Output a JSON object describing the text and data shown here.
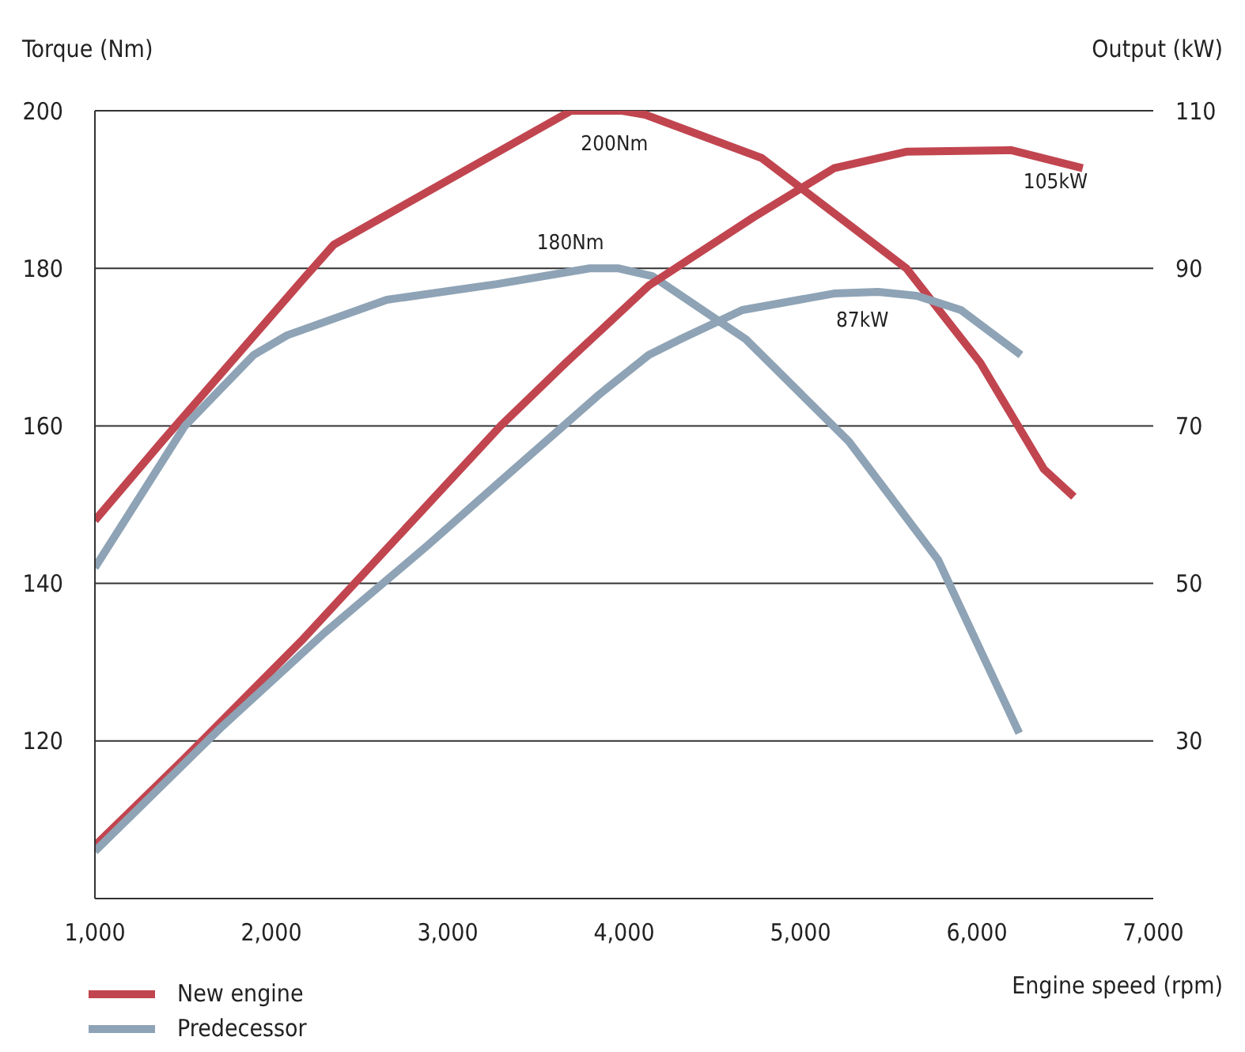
{
  "chart_data": {
    "type": "line",
    "xlabel": "Engine speed (rpm)",
    "ylabel": "Torque (Nm)",
    "y2label": "Output (kW)",
    "xlim": [
      1000,
      7000
    ],
    "xticks": [
      {
        "value": 1000,
        "label": "1,000"
      },
      {
        "value": 2000,
        "label": "2,000"
      },
      {
        "value": 3000,
        "label": "3,000"
      },
      {
        "value": 4000,
        "label": "4,000"
      },
      {
        "value": 5000,
        "label": "5,000"
      },
      {
        "value": 6000,
        "label": "6,000"
      },
      {
        "value": 7000,
        "label": "7,000"
      }
    ],
    "ylim": [
      100,
      200
    ],
    "yticks": [
      120,
      140,
      160,
      180,
      200
    ],
    "y2lim": [
      10,
      110
    ],
    "y2ticks": [
      30,
      50,
      70,
      90,
      110
    ],
    "grid": "y",
    "legend": "bottom left",
    "series": [
      {
        "name": "New engine",
        "color": "#c1454f",
        "x": [
          1000,
          1380,
          2195,
          2354,
          3700,
          3990,
          4120,
          4780,
          5600,
          6020,
          6380,
          6550
        ],
        "values": [
          148,
          158,
          179,
          183,
          200,
          200,
          199.5,
          194,
          180,
          168,
          154.5,
          151
        ],
        "value_labels": [
          null,
          null,
          null,
          null,
          null,
          "200Nm",
          null,
          null,
          null,
          null,
          null,
          null
        ]
      },
      {
        "name": "Predecessor",
        "color": "#8ea3b5",
        "x": [
          1000,
          1510,
          1900,
          2090,
          2655,
          3280,
          3805,
          3965,
          4160,
          4690,
          5275,
          5780,
          6240
        ],
        "values": [
          142,
          160,
          169,
          171.5,
          176,
          178,
          180,
          180,
          179,
          171,
          158,
          143,
          121
        ],
        "value_labels": [
          null,
          null,
          null,
          null,
          null,
          null,
          null,
          "180Nm",
          null,
          null,
          null,
          null,
          null
        ]
      },
      {
        "color": "#c1454f",
        "axis": "y2",
        "x": [
          1000,
          1500,
          2170,
          3300,
          3670,
          4140,
          4735,
          5190,
          5600,
          6195,
          6600
        ],
        "values": [
          16.7,
          27.6,
          42.7,
          70,
          78,
          87.8,
          96.5,
          102.7,
          104.8,
          105,
          102.7
        ],
        "value_labels": [
          null,
          null,
          null,
          null,
          null,
          null,
          null,
          null,
          null,
          "105kW",
          null
        ]
      },
      {
        "color": "#8ea3b5",
        "axis": "y2",
        "x": [
          1000,
          1710,
          2300,
          2885,
          3275,
          3860,
          4140,
          4320,
          4670,
          5190,
          5440,
          5660,
          5910,
          6250
        ],
        "values": [
          16,
          31.6,
          43.7,
          54.8,
          62.5,
          74,
          79,
          81,
          84.7,
          86.8,
          87,
          86.5,
          84.7,
          79
        ],
        "value_labels": [
          null,
          null,
          null,
          null,
          null,
          null,
          null,
          null,
          null,
          null,
          "87kW",
          null,
          null,
          null
        ]
      }
    ]
  }
}
